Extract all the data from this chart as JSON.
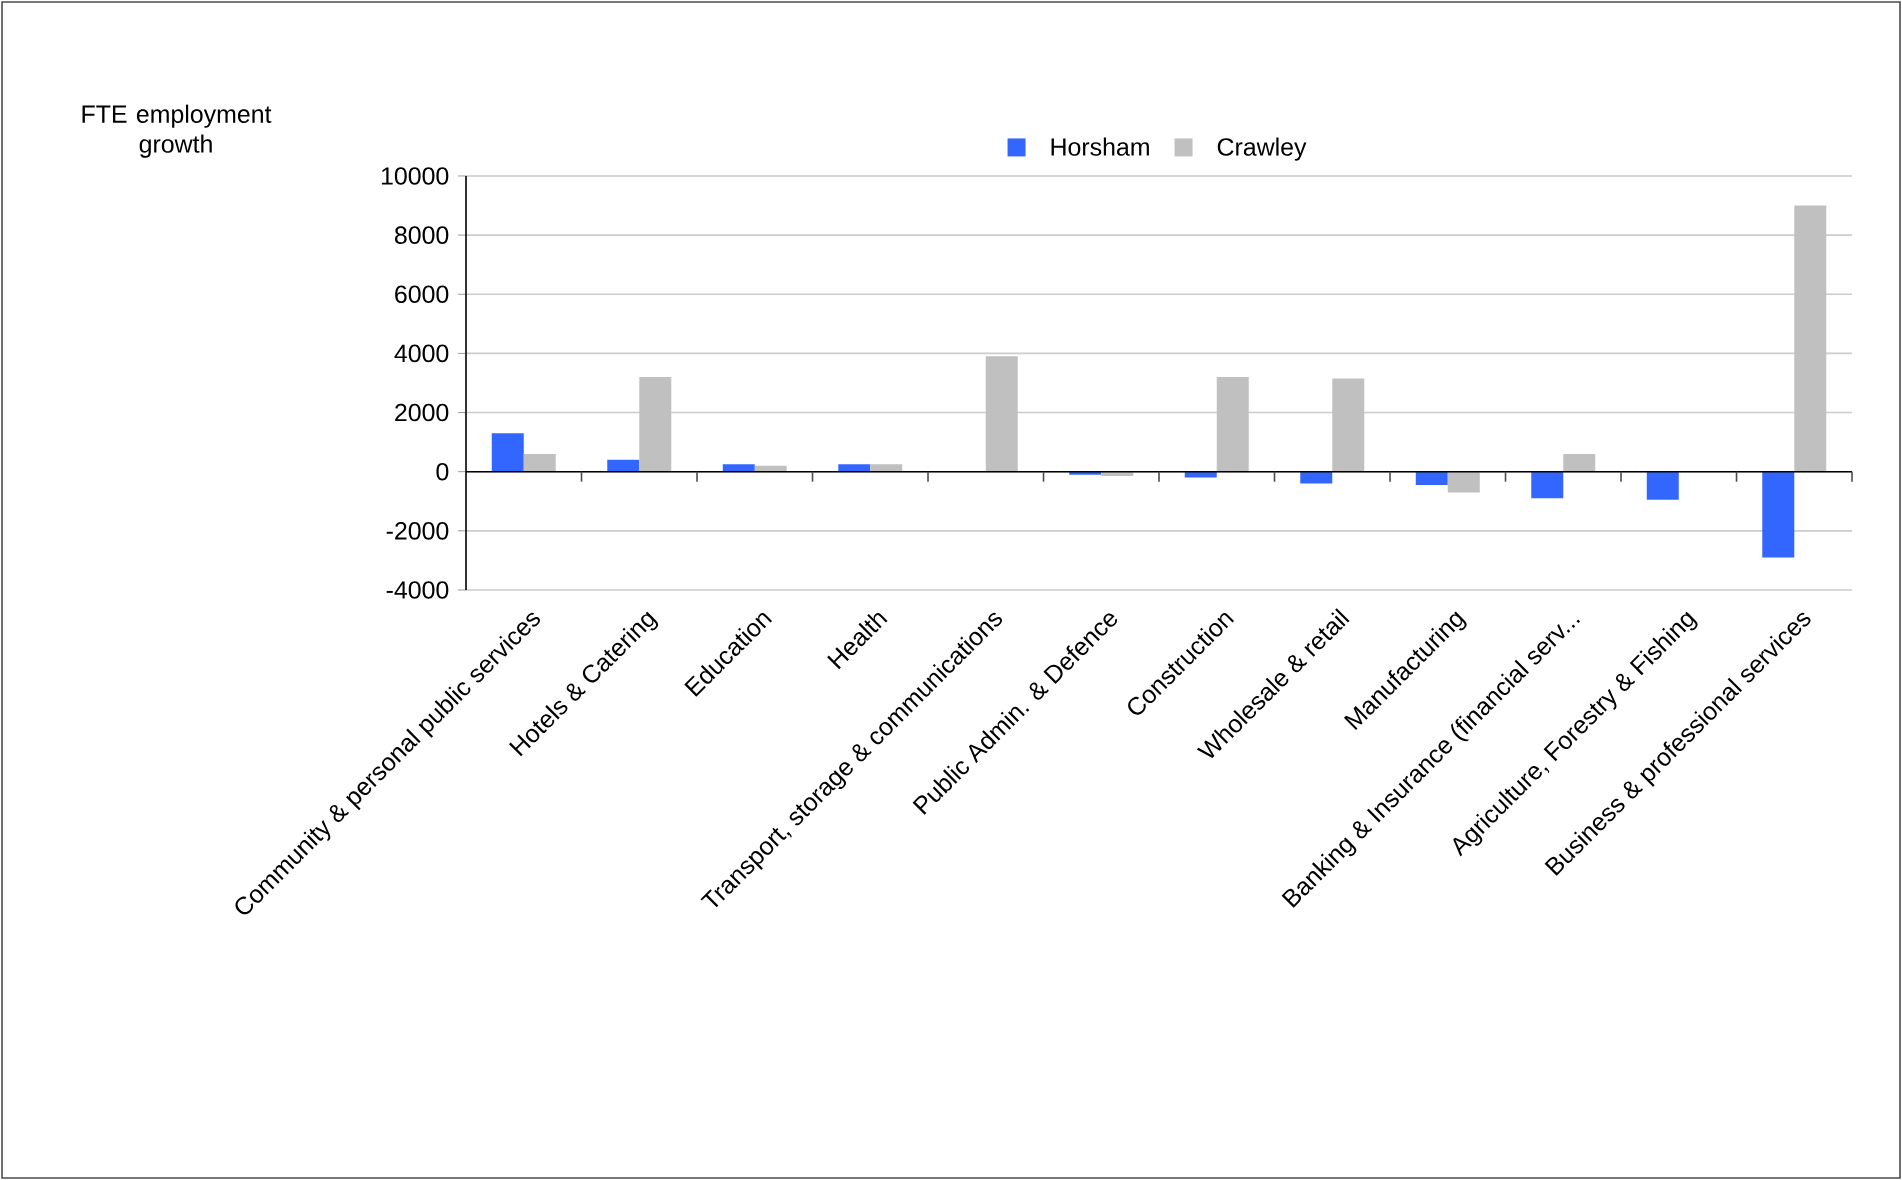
{
  "chart_data": {
    "type": "bar",
    "ylabel": "FTE employment growth",
    "categories": [
      "Community & personal public services",
      "Hotels & Catering",
      "Education",
      "Health",
      "Transport, storage & communications",
      "Public Admin. & Defence",
      "Construction",
      "Wholesale & retail",
      "Manufacturing",
      "Banking & Insurance (financial serv...",
      "Agriculture, Forestry & Fishing",
      "Business & professional services"
    ],
    "series": [
      {
        "name": "Horsham",
        "color": "#3366ff",
        "values": [
          1300,
          400,
          250,
          250,
          0,
          -100,
          -200,
          -400,
          -450,
          -900,
          -950,
          -2900
        ]
      },
      {
        "name": "Crawley",
        "color": "#c0c0c0",
        "values": [
          600,
          3200,
          200,
          250,
          3900,
          -150,
          3200,
          3150,
          -700,
          600,
          0,
          9000
        ]
      }
    ],
    "ylim": [
      -4000,
      10000
    ],
    "yticks": [
      -4000,
      -2000,
      0,
      2000,
      4000,
      6000,
      8000,
      10000
    ],
    "grid": "y",
    "legend": "top"
  }
}
